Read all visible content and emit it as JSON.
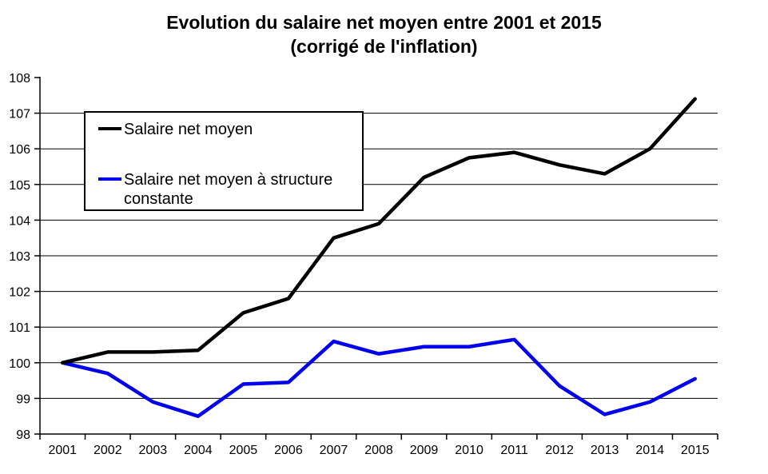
{
  "chart": {
    "title_line1": "Evolution du salaire net moyen entre 2001 et 2015",
    "title_line2": "(corrigé de l'inflation)"
  },
  "legend": {
    "items": [
      {
        "label": "Salaire net moyen",
        "color": "#000000"
      },
      {
        "label": "Salaire net moyen à structure constante",
        "color": "#0000ee"
      }
    ]
  },
  "chart_data": {
    "type": "line",
    "title": "Evolution du salaire net moyen entre 2001 et 2015 (corrigé de l'inflation)",
    "categories": [
      "2001",
      "2002",
      "2003",
      "2004",
      "2005",
      "2006",
      "2007",
      "2008",
      "2009",
      "2010",
      "2011",
      "2012",
      "2013",
      "2014",
      "2015"
    ],
    "series": [
      {
        "id": "salaire-net-moyen",
        "name": "Salaire net moyen",
        "color": "#000000",
        "values": [
          100,
          100.3,
          100.3,
          100.35,
          101.4,
          101.8,
          103.5,
          103.9,
          105.2,
          105.75,
          105.9,
          105.55,
          105.3,
          106.0,
          107.4
        ]
      },
      {
        "id": "salaire-net-moyen-structure-constante",
        "name": "Salaire net moyen à structure constante",
        "color": "#0000ee",
        "values": [
          100,
          99.7,
          98.9,
          98.5,
          99.4,
          99.45,
          100.6,
          100.25,
          100.45,
          100.45,
          100.65,
          99.35,
          98.55,
          98.9,
          99.55
        ]
      }
    ],
    "xlabel": "",
    "ylabel": "",
    "ylim": [
      98,
      108
    ],
    "ytick_step": 1,
    "grid": true,
    "legend_position": "inside-top-left"
  }
}
